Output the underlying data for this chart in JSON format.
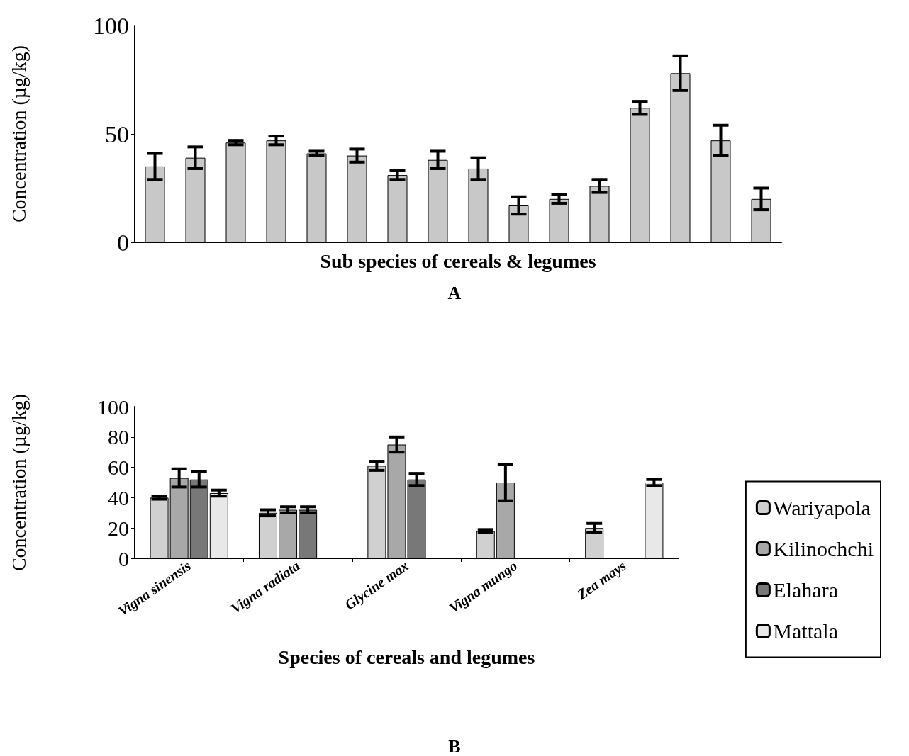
{
  "chart_data": [
    {
      "type": "bar",
      "ylabel": "Concentration (µg/kg)",
      "xlabel": "Sub species of cereals & legumes",
      "annotations": [
        "A"
      ],
      "categories": [
        null,
        null,
        null,
        null,
        null,
        null,
        null,
        null,
        null,
        null,
        null,
        null,
        null,
        null,
        null,
        null
      ],
      "series": [
        {
          "color": "#c8c8c8",
          "values": [
            35,
            39,
            46,
            47,
            41,
            40,
            31,
            38,
            34,
            17,
            20,
            26,
            62,
            78,
            47,
            20
          ],
          "errors": [
            6,
            5,
            1,
            2,
            1,
            3,
            2,
            4,
            5,
            4,
            2,
            3,
            3,
            8,
            7,
            5
          ]
        }
      ],
      "ylim": [
        0,
        100
      ],
      "yticks": [
        0,
        50,
        100
      ],
      "grid": false,
      "legend": false
    },
    {
      "type": "bar",
      "ylabel": "Concentration (µg/kg)",
      "xlabel": "Species of cereals and legumes",
      "annotations": [
        "B"
      ],
      "categories": [
        "Vigna sinensis",
        "Vigna radiata",
        "Glycine max",
        "Vigna mungo",
        "Zea mays"
      ],
      "series": [
        {
          "name": "Wariyapola",
          "color": "#d0d0d0",
          "values": [
            40,
            30,
            61,
            18,
            20
          ],
          "errors": [
            1,
            2,
            3,
            1,
            3
          ]
        },
        {
          "name": "Kilinochchi",
          "color": "#a8a8a8",
          "values": [
            53,
            32,
            75,
            50,
            null
          ],
          "errors": [
            6,
            2,
            5,
            12,
            null
          ]
        },
        {
          "name": "Elahara",
          "color": "#787878",
          "values": [
            52,
            32,
            52,
            null,
            null
          ],
          "errors": [
            5,
            2,
            4,
            null,
            null
          ]
        },
        {
          "name": "Mattala",
          "color": "#e8e8e8",
          "values": [
            43,
            null,
            null,
            null,
            50
          ],
          "errors": [
            2,
            null,
            null,
            null,
            2
          ]
        }
      ],
      "ylim": [
        0,
        100
      ],
      "yticks": [
        0,
        20,
        40,
        60,
        80,
        100
      ],
      "grid": false,
      "legend": "right"
    }
  ]
}
